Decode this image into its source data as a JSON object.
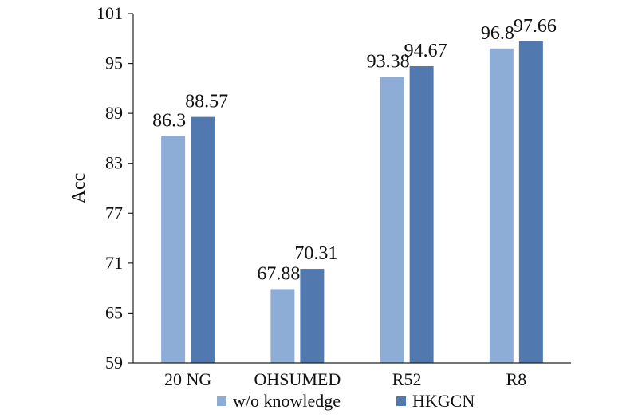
{
  "chart_data": {
    "type": "bar",
    "categories": [
      "20 NG",
      "OHSUMED",
      "R52",
      "R8"
    ],
    "series": [
      {
        "name": "w/o knowledge",
        "values": [
          86.3,
          67.88,
          93.38,
          96.8
        ],
        "labels": [
          "86.3",
          "67.88",
          "93.38",
          "96.8"
        ],
        "color": "#8eadd6"
      },
      {
        "name": "HKGCN",
        "values": [
          88.57,
          70.31,
          94.67,
          97.66
        ],
        "labels": [
          "88.57",
          "70.31",
          "94.67",
          "97.66"
        ],
        "color": "#5179b0"
      }
    ],
    "ylabel": "Acc",
    "xlabel": "",
    "ylim": [
      59,
      101
    ],
    "yticks": [
      "59",
      "65",
      "71",
      "77",
      "83",
      "89",
      "95",
      "101"
    ],
    "grid": false,
    "legend_position": "bottom"
  }
}
